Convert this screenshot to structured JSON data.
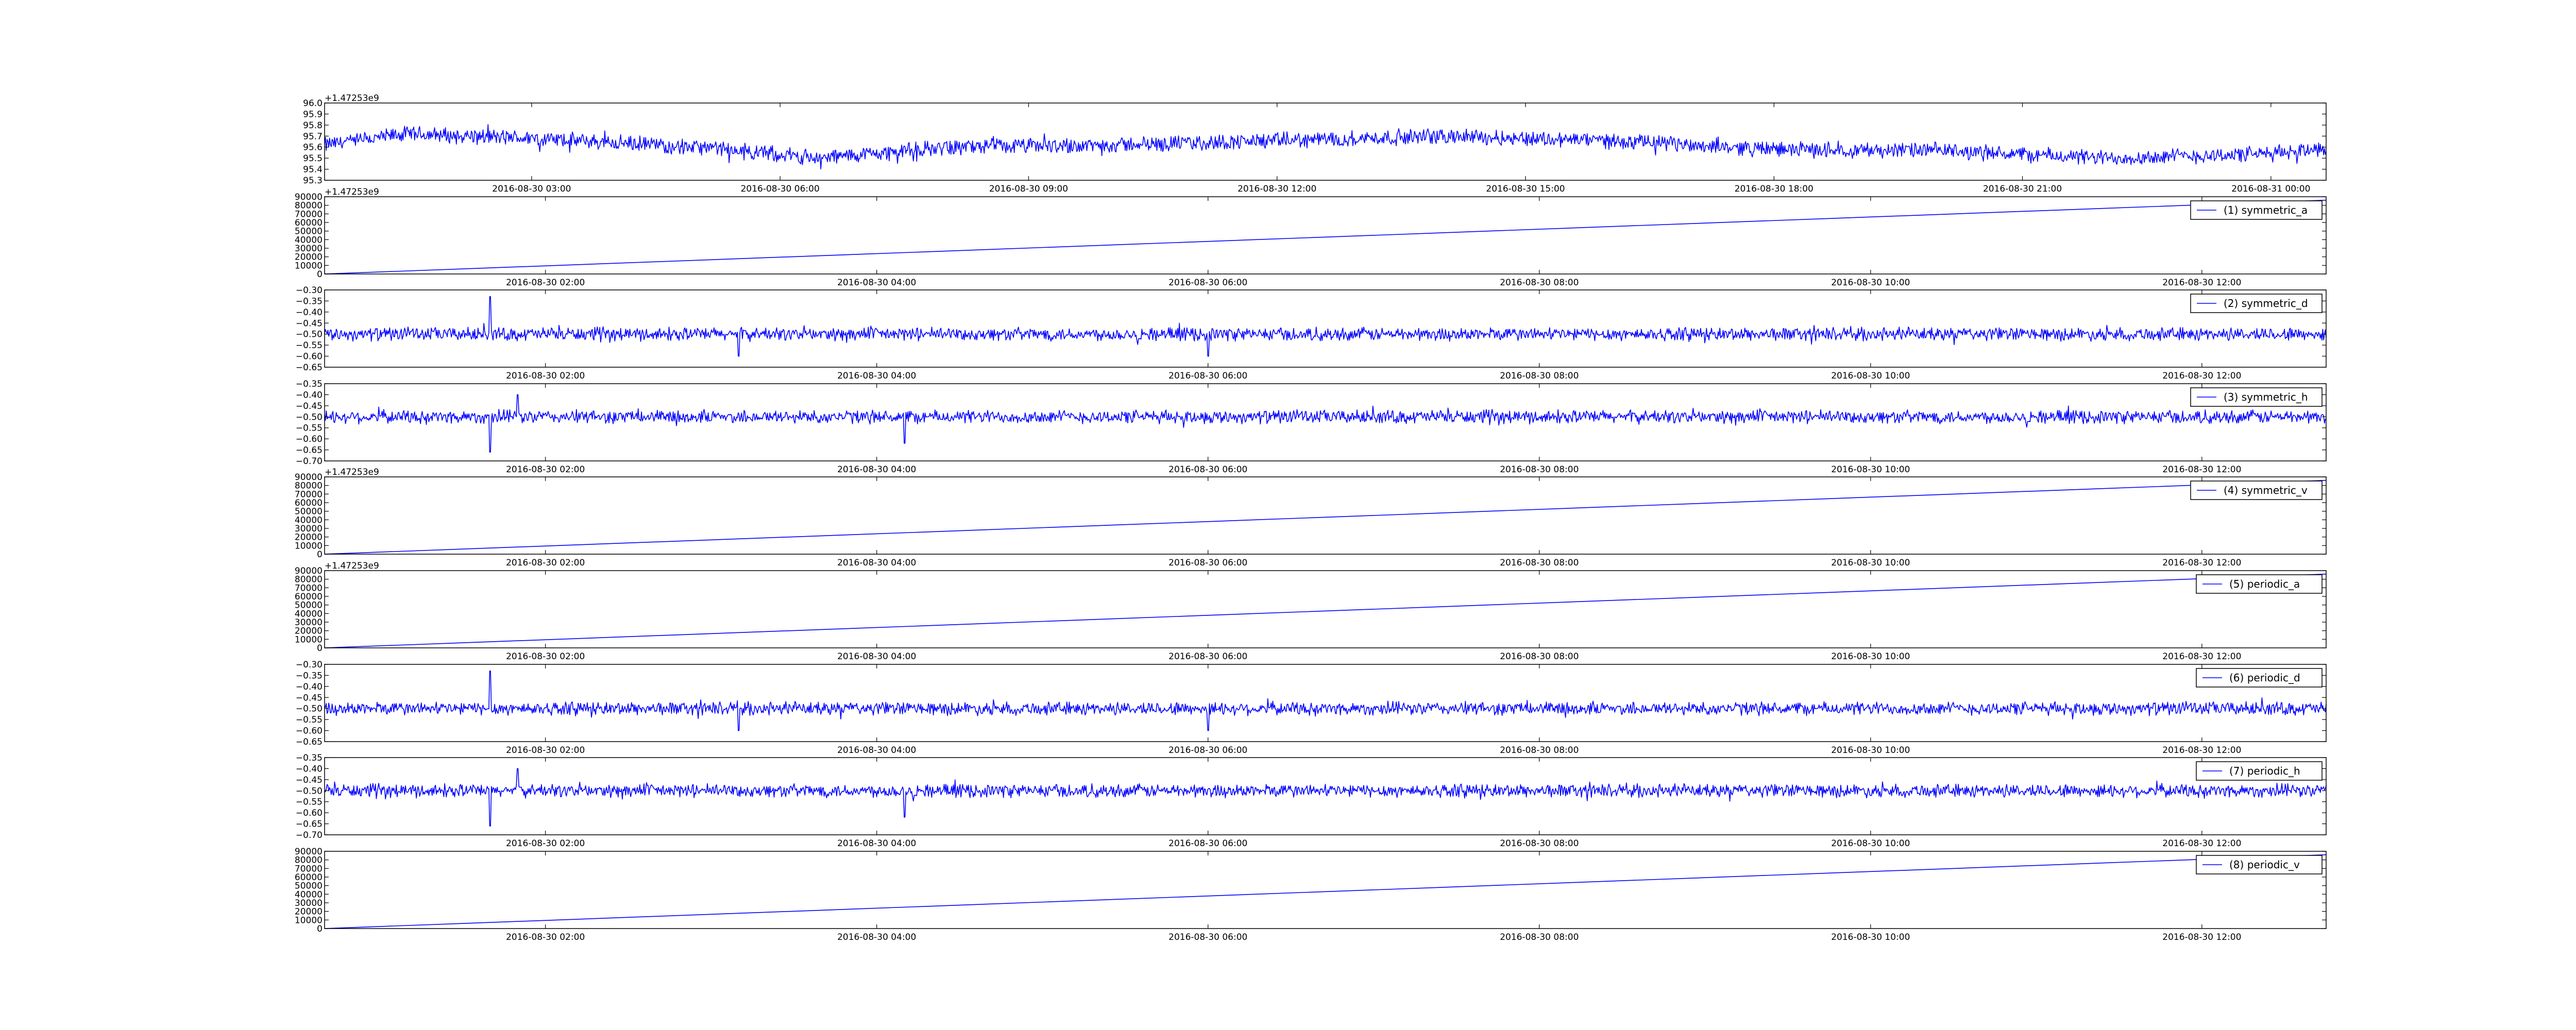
{
  "figure": {
    "background": "#ffffff",
    "line_color": "#0000ff"
  },
  "chart_data": [
    {
      "type": "line",
      "title": "",
      "xlabel": "",
      "ylabel": "",
      "x_tick_labels": [
        "2016-08-30 03:00",
        "2016-08-30 06:00",
        "2016-08-30 09:00",
        "2016-08-30 12:00",
        "2016-08-30 15:00",
        "2016-08-30 18:00",
        "2016-08-30 21:00",
        "2016-08-31 00:00"
      ],
      "y_ticks": [
        95.3,
        95.4,
        95.5,
        95.6,
        95.7,
        95.8,
        95.9,
        96.0
      ],
      "y_tick_labels": [
        "95.3",
        "95.4",
        "95.5",
        "95.6",
        "95.7",
        "95.8",
        "95.9",
        "96.0"
      ],
      "ylim": [
        95.3,
        96.0
      ],
      "xlim": [
        "2016-08-30 00:30",
        "2016-08-31 00:40"
      ],
      "y_offset_label": "+1.47253e9",
      "kind": "noise",
      "series": [
        {
          "mean_profile": [
            [
              "2016-08-30 00:30",
              95.62
            ],
            [
              "2016-08-30 01:30",
              95.72
            ],
            [
              "2016-08-30 03:00",
              95.68
            ],
            [
              "2016-08-30 05:00",
              95.6
            ],
            [
              "2016-08-30 06:30",
              95.5
            ],
            [
              "2016-08-30 08:00",
              95.6
            ],
            [
              "2016-08-30 10:00",
              95.62
            ],
            [
              "2016-08-30 12:00",
              95.66
            ],
            [
              "2016-08-30 14:00",
              95.7
            ],
            [
              "2016-08-30 16:00",
              95.66
            ],
            [
              "2016-08-30 18:00",
              95.58
            ],
            [
              "2016-08-30 20:00",
              95.57
            ],
            [
              "2016-08-30 22:00",
              95.5
            ],
            [
              "2016-08-31 00:00",
              95.54
            ],
            [
              "2016-08-31 00:40",
              95.6
            ]
          ],
          "amplitude": 0.06
        }
      ]
    },
    {
      "type": "line",
      "title": "",
      "xlabel": "",
      "ylabel": "",
      "x_tick_labels": [
        "2016-08-30 02:00",
        "2016-08-30 04:00",
        "2016-08-30 06:00",
        "2016-08-30 08:00",
        "2016-08-30 10:00",
        "2016-08-30 12:00"
      ],
      "y_ticks": [
        0,
        10000,
        20000,
        30000,
        40000,
        50000,
        60000,
        70000,
        80000,
        90000
      ],
      "y_tick_labels": [
        "0",
        "10000",
        "20000",
        "30000",
        "40000",
        "50000",
        "60000",
        "70000",
        "80000",
        "90000"
      ],
      "ylim": [
        0,
        90000
      ],
      "xlim": [
        "2016-08-30 00:40",
        "2016-08-30 12:45"
      ],
      "y_offset_label": "+1.47253e9",
      "kind": "linear",
      "series": [
        {
          "name": "(1) symmetric_a",
          "x": [
            "2016-08-30 00:40",
            "2016-08-30 12:45"
          ],
          "y": [
            0,
            86000
          ]
        }
      ],
      "legend": "top-right"
    },
    {
      "type": "line",
      "title": "",
      "xlabel": "",
      "ylabel": "",
      "x_tick_labels": [
        "2016-08-30 02:00",
        "2016-08-30 04:00",
        "2016-08-30 06:00",
        "2016-08-30 08:00",
        "2016-08-30 10:00",
        "2016-08-30 12:00"
      ],
      "y_ticks": [
        -0.65,
        -0.6,
        -0.55,
        -0.5,
        -0.45,
        -0.4,
        -0.35,
        -0.3
      ],
      "y_tick_labels": [
        "−0.65",
        "−0.60",
        "−0.55",
        "−0.50",
        "−0.45",
        "−0.40",
        "−0.35",
        "−0.30"
      ],
      "ylim": [
        -0.65,
        -0.3
      ],
      "xlim": [
        "2016-08-30 00:40",
        "2016-08-30 12:45"
      ],
      "kind": "noise",
      "series": [
        {
          "name": "(2) symmetric_d",
          "mean": -0.5,
          "amplitude": 0.025,
          "spikes": [
            [
              "2016-08-30 01:40",
              -0.33
            ],
            [
              "2016-08-30 03:10",
              -0.6
            ],
            [
              "2016-08-30 06:00",
              -0.6
            ]
          ]
        }
      ],
      "legend": "top-right"
    },
    {
      "type": "line",
      "title": "",
      "xlabel": "",
      "ylabel": "",
      "x_tick_labels": [
        "2016-08-30 02:00",
        "2016-08-30 04:00",
        "2016-08-30 06:00",
        "2016-08-30 08:00",
        "2016-08-30 10:00",
        "2016-08-30 12:00"
      ],
      "y_ticks": [
        -0.7,
        -0.65,
        -0.6,
        -0.55,
        -0.5,
        -0.45,
        -0.4,
        -0.35
      ],
      "y_tick_labels": [
        "−0.70",
        "−0.65",
        "−0.60",
        "−0.55",
        "−0.50",
        "−0.45",
        "−0.40",
        "−0.35"
      ],
      "ylim": [
        -0.7,
        -0.35
      ],
      "xlim": [
        "2016-08-30 00:40",
        "2016-08-30 12:45"
      ],
      "kind": "noise",
      "series": [
        {
          "name": "(3) symmetric_h",
          "mean": -0.5,
          "amplitude": 0.025,
          "spikes": [
            [
              "2016-08-30 01:40",
              -0.66
            ],
            [
              "2016-08-30 01:50",
              -0.4
            ],
            [
              "2016-08-30 04:10",
              -0.62
            ]
          ]
        }
      ],
      "legend": "top-right"
    },
    {
      "type": "line",
      "title": "",
      "xlabel": "",
      "ylabel": "",
      "x_tick_labels": [
        "2016-08-30 02:00",
        "2016-08-30 04:00",
        "2016-08-30 06:00",
        "2016-08-30 08:00",
        "2016-08-30 10:00",
        "2016-08-30 12:00"
      ],
      "y_ticks": [
        0,
        10000,
        20000,
        30000,
        40000,
        50000,
        60000,
        70000,
        80000,
        90000
      ],
      "y_tick_labels": [
        "0",
        "10000",
        "20000",
        "30000",
        "40000",
        "50000",
        "60000",
        "70000",
        "80000",
        "90000"
      ],
      "ylim": [
        0,
        90000
      ],
      "xlim": [
        "2016-08-30 00:40",
        "2016-08-30 12:45"
      ],
      "y_offset_label": "+1.47253e9",
      "kind": "linear",
      "series": [
        {
          "name": "(4) symmetric_v",
          "x": [
            "2016-08-30 00:40",
            "2016-08-30 12:45"
          ],
          "y": [
            0,
            86000
          ]
        }
      ],
      "legend": "top-right"
    },
    {
      "type": "line",
      "title": "",
      "xlabel": "",
      "ylabel": "",
      "x_tick_labels": [
        "2016-08-30 02:00",
        "2016-08-30 04:00",
        "2016-08-30 06:00",
        "2016-08-30 08:00",
        "2016-08-30 10:00",
        "2016-08-30 12:00"
      ],
      "y_ticks": [
        0,
        10000,
        20000,
        30000,
        40000,
        50000,
        60000,
        70000,
        80000,
        90000
      ],
      "y_tick_labels": [
        "0",
        "10000",
        "20000",
        "30000",
        "40000",
        "50000",
        "60000",
        "70000",
        "80000",
        "90000"
      ],
      "ylim": [
        0,
        90000
      ],
      "xlim": [
        "2016-08-30 00:40",
        "2016-08-30 12:45"
      ],
      "y_offset_label": "+1.47253e9",
      "kind": "linear",
      "series": [
        {
          "name": "(5) periodic_a",
          "x": [
            "2016-08-30 00:40",
            "2016-08-30 12:45"
          ],
          "y": [
            0,
            86000
          ]
        }
      ],
      "legend": "top-right"
    },
    {
      "type": "line",
      "title": "",
      "xlabel": "",
      "ylabel": "",
      "x_tick_labels": [
        "2016-08-30 02:00",
        "2016-08-30 04:00",
        "2016-08-30 06:00",
        "2016-08-30 08:00",
        "2016-08-30 10:00",
        "2016-08-30 12:00"
      ],
      "y_ticks": [
        -0.65,
        -0.6,
        -0.55,
        -0.5,
        -0.45,
        -0.4,
        -0.35,
        -0.3
      ],
      "y_tick_labels": [
        "−0.65",
        "−0.60",
        "−0.55",
        "−0.50",
        "−0.45",
        "−0.40",
        "−0.35",
        "−0.30"
      ],
      "ylim": [
        -0.65,
        -0.3
      ],
      "xlim": [
        "2016-08-30 00:40",
        "2016-08-30 12:45"
      ],
      "kind": "noise",
      "series": [
        {
          "name": "(6) periodic_d",
          "mean": -0.5,
          "amplitude": 0.025,
          "spikes": [
            [
              "2016-08-30 01:40",
              -0.33
            ],
            [
              "2016-08-30 03:10",
              -0.6
            ],
            [
              "2016-08-30 06:00",
              -0.6
            ]
          ]
        }
      ],
      "legend": "top-right"
    },
    {
      "type": "line",
      "title": "",
      "xlabel": "",
      "ylabel": "",
      "x_tick_labels": [
        "2016-08-30 02:00",
        "2016-08-30 04:00",
        "2016-08-30 06:00",
        "2016-08-30 08:00",
        "2016-08-30 10:00",
        "2016-08-30 12:00"
      ],
      "y_ticks": [
        -0.7,
        -0.65,
        -0.6,
        -0.55,
        -0.5,
        -0.45,
        -0.4,
        -0.35
      ],
      "y_tick_labels": [
        "−0.70",
        "−0.65",
        "−0.60",
        "−0.55",
        "−0.50",
        "−0.45",
        "−0.40",
        "−0.35"
      ],
      "ylim": [
        -0.7,
        -0.35
      ],
      "xlim": [
        "2016-08-30 00:40",
        "2016-08-30 12:45"
      ],
      "kind": "noise",
      "series": [
        {
          "name": "(7) periodic_h",
          "mean": -0.5,
          "amplitude": 0.025,
          "spikes": [
            [
              "2016-08-30 01:40",
              -0.66
            ],
            [
              "2016-08-30 01:50",
              -0.4
            ],
            [
              "2016-08-30 04:10",
              -0.62
            ]
          ]
        }
      ],
      "legend": "top-right"
    },
    {
      "type": "line",
      "title": "",
      "xlabel": "",
      "ylabel": "",
      "x_tick_labels": [
        "2016-08-30 02:00",
        "2016-08-30 04:00",
        "2016-08-30 06:00",
        "2016-08-30 08:00",
        "2016-08-30 10:00",
        "2016-08-30 12:00"
      ],
      "y_ticks": [
        0,
        10000,
        20000,
        30000,
        40000,
        50000,
        60000,
        70000,
        80000,
        90000
      ],
      "y_tick_labels": [
        "0",
        "10000",
        "20000",
        "30000",
        "40000",
        "50000",
        "60000",
        "70000",
        "80000",
        "90000"
      ],
      "ylim": [
        0,
        90000
      ],
      "xlim": [
        "2016-08-30 00:40",
        "2016-08-30 12:45"
      ],
      "kind": "linear",
      "series": [
        {
          "name": "(8) periodic_v",
          "x": [
            "2016-08-30 00:40",
            "2016-08-30 12:45"
          ],
          "y": [
            0,
            86000
          ]
        }
      ],
      "legend": "top-right"
    }
  ]
}
